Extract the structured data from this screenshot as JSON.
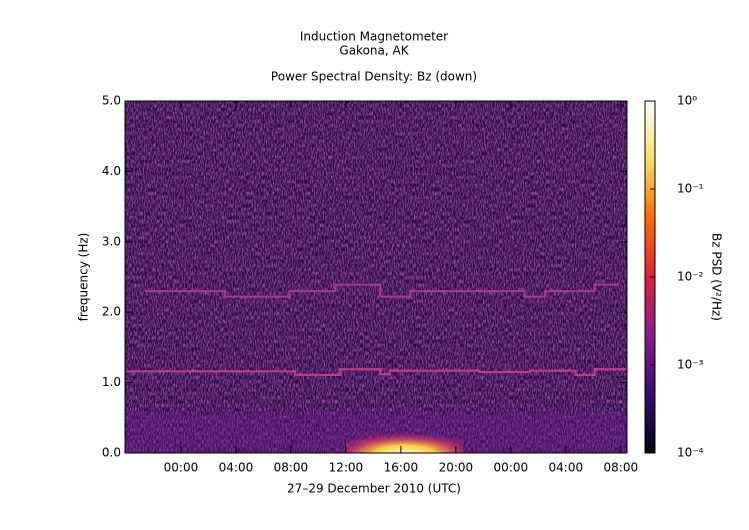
{
  "chart_data": {
    "type": "spectrogram",
    "title": "Induction Magnetometer",
    "subtitle": "Gakona, AK",
    "plot_title": "Power Spectral Density: Bz (down)",
    "x_label": "27–29 December 2010 (UTC)",
    "y_label": "frequency (Hz)",
    "xlim": [
      -4.07,
      32.45
    ],
    "xticks": [
      {
        "value": 0,
        "label": "00:00"
      },
      {
        "value": 4,
        "label": "04:00"
      },
      {
        "value": 8,
        "label": "08:00"
      },
      {
        "value": 12,
        "label": "12:00"
      },
      {
        "value": 16,
        "label": "16:00"
      },
      {
        "value": 20,
        "label": "20:00"
      },
      {
        "value": 24,
        "label": "00:00"
      },
      {
        "value": 28,
        "label": "04:00"
      },
      {
        "value": 32,
        "label": "08:00"
      }
    ],
    "ylim": [
      0,
      5
    ],
    "yticks": [
      {
        "value": 0,
        "label": "0.0"
      },
      {
        "value": 1,
        "label": "1.0"
      },
      {
        "value": 2,
        "label": "2.0"
      },
      {
        "value": 3,
        "label": "3.0"
      },
      {
        "value": 4,
        "label": "4.0"
      },
      {
        "value": 5,
        "label": "5.0"
      }
    ],
    "background_color": "#2a0c45",
    "bands": [
      {
        "color": "#d43a8c",
        "x": [
          -4,
          8.3,
          8.3,
          11.6,
          11.6,
          14.5,
          14.5,
          15.2,
          15.2,
          21.7,
          21.7,
          25.4,
          25.4,
          28.7,
          28.7,
          30.1,
          30.1,
          32.5
        ],
        "values": [
          1.16,
          1.16,
          1.11,
          1.11,
          1.19,
          1.19,
          1.12,
          1.12,
          1.17,
          1.17,
          1.15,
          1.15,
          1.17,
          1.17,
          1.11,
          1.11,
          1.19,
          1.19
        ]
      },
      {
        "color": "#b8358e",
        "x": [
          -2.6,
          3.2,
          3.2,
          7.9,
          7.9,
          11.2,
          11.2,
          14.5,
          14.5,
          16.7,
          16.7,
          25.0,
          25.0,
          26.5,
          26.5,
          30.1,
          30.1,
          31.9
        ],
        "values": [
          2.3,
          2.3,
          2.22,
          2.22,
          2.3,
          2.3,
          2.39,
          2.39,
          2.22,
          2.22,
          2.3,
          2.3,
          2.22,
          2.22,
          2.3,
          2.3,
          2.39,
          2.39
        ]
      }
    ],
    "burst": {
      "x": [
        12,
        20.5
      ],
      "values": [
        0,
        0.45
      ]
    },
    "colorbar": {
      "label": "Bz PSD (V²/Hz)",
      "log_scale": true,
      "clim": [
        0.0001,
        1
      ],
      "colors": [
        "#000010",
        "#3a0a6e",
        "#8a1a8a",
        "#e0203a",
        "#ff6a00",
        "#f8e060",
        "#ffffff"
      ],
      "ticks": [
        {
          "value": 0.0001,
          "label": "10⁻⁴"
        },
        {
          "value": 0.001,
          "label": "10⁻³"
        },
        {
          "value": 0.01,
          "label": "10⁻²"
        },
        {
          "value": 0.1,
          "label": "10⁻¹"
        },
        {
          "value": 1,
          "label": "10⁰"
        }
      ]
    }
  }
}
